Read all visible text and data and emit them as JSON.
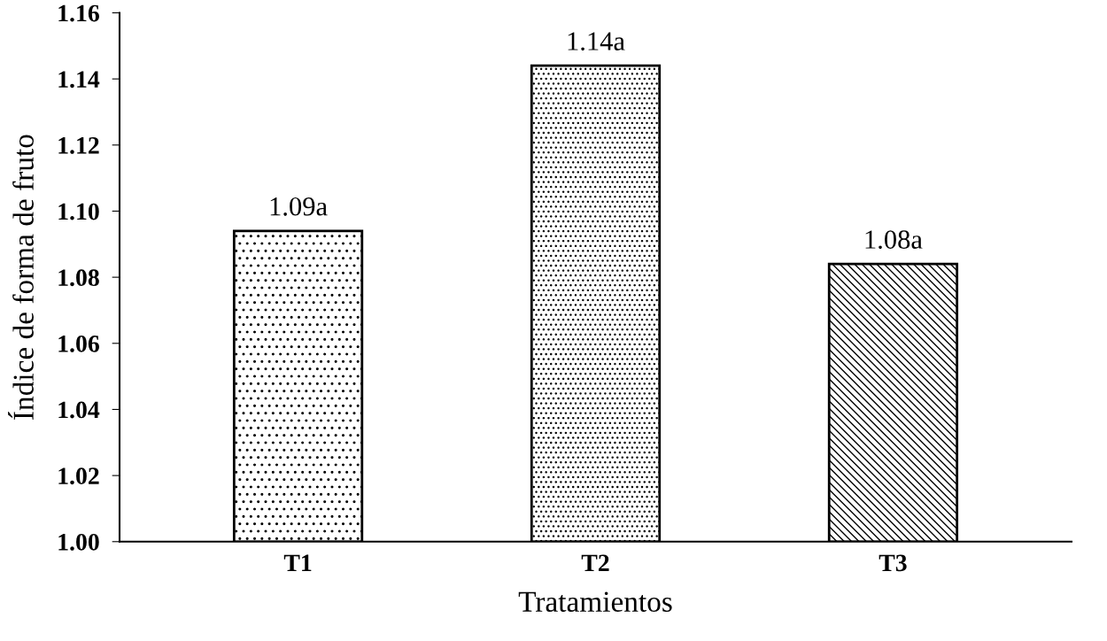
{
  "chart_data": {
    "type": "bar",
    "xlabel": "Tratamientos",
    "ylabel": "Índice de forma de fruto",
    "categories": [
      "T1",
      "T2",
      "T3"
    ],
    "values": [
      1.094,
      1.144,
      1.084
    ],
    "value_labels": [
      "1.09a",
      "1.14a",
      "1.08a"
    ],
    "ylim": [
      1.0,
      1.16
    ],
    "yticks": [
      {
        "value": 1.0,
        "label": "1.00"
      },
      {
        "value": 1.02,
        "label": "1.02"
      },
      {
        "value": 1.04,
        "label": "1.04"
      },
      {
        "value": 1.06,
        "label": "1.06"
      },
      {
        "value": 1.08,
        "label": "1.08"
      },
      {
        "value": 1.1,
        "label": "1.10"
      },
      {
        "value": 1.12,
        "label": "1.12"
      },
      {
        "value": 1.14,
        "label": "1.14"
      },
      {
        "value": 1.16,
        "label": "1.16"
      }
    ],
    "grid": false
  }
}
